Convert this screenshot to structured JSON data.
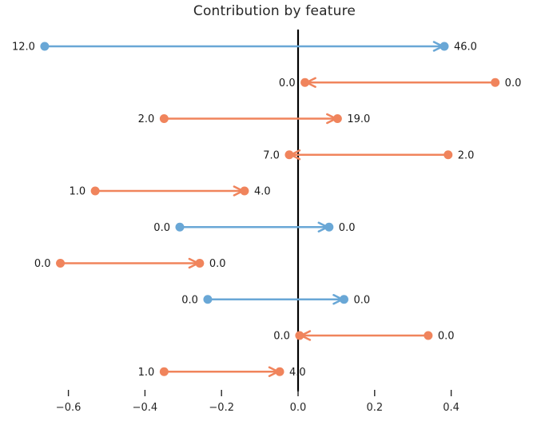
{
  "chart_data": {
    "type": "dumbbell-arrows",
    "title": "Contribution by feature",
    "xlabel": "",
    "ylabel": "",
    "xlim": [
      -0.72,
      0.655
    ],
    "zero_line_x": 0.0,
    "grid": false,
    "legend": "none",
    "x_ticks": [
      -0.6,
      -0.4,
      -0.2,
      0.0,
      0.2,
      0.4
    ],
    "x_tick_labels": [
      "−0.6",
      "−0.4",
      "−0.2",
      "0.0",
      "0.2",
      "0.4"
    ],
    "palette": {
      "blue": "#69a7d6",
      "orange": "#f0845c",
      "zero_line": "#000000",
      "text": "#1a1a1a",
      "tick": "#262626"
    },
    "arrows": [
      {
        "row": 0,
        "color": "blue",
        "start": -0.662,
        "end": 0.382,
        "start_label": "12.0",
        "end_label": "46.0"
      },
      {
        "row": 1,
        "color": "orange",
        "start": 0.515,
        "end": 0.018,
        "start_label": "0.0",
        "end_label": "0.0"
      },
      {
        "row": 2,
        "color": "orange",
        "start": -0.35,
        "end": 0.103,
        "start_label": "2.0",
        "end_label": "19.0"
      },
      {
        "row": 3,
        "color": "orange",
        "start": 0.392,
        "end": -0.023,
        "start_label": "2.0",
        "end_label": "7.0"
      },
      {
        "row": 4,
        "color": "orange",
        "start": -0.53,
        "end": -0.14,
        "start_label": "1.0",
        "end_label": "4.0"
      },
      {
        "row": 5,
        "color": "blue",
        "start": -0.309,
        "end": 0.081,
        "start_label": "0.0",
        "end_label": "0.0"
      },
      {
        "row": 6,
        "color": "orange",
        "start": -0.621,
        "end": -0.257,
        "start_label": "0.0",
        "end_label": "0.0"
      },
      {
        "row": 7,
        "color": "blue",
        "start": -0.236,
        "end": 0.12,
        "start_label": "0.0",
        "end_label": "0.0"
      },
      {
        "row": 8,
        "color": "orange",
        "start": 0.34,
        "end": 0.004,
        "start_label": "0.0",
        "end_label": "0.0"
      },
      {
        "row": 9,
        "color": "orange",
        "start": -0.35,
        "end": -0.048,
        "start_label": "1.0",
        "end_label": "4.0"
      }
    ]
  }
}
